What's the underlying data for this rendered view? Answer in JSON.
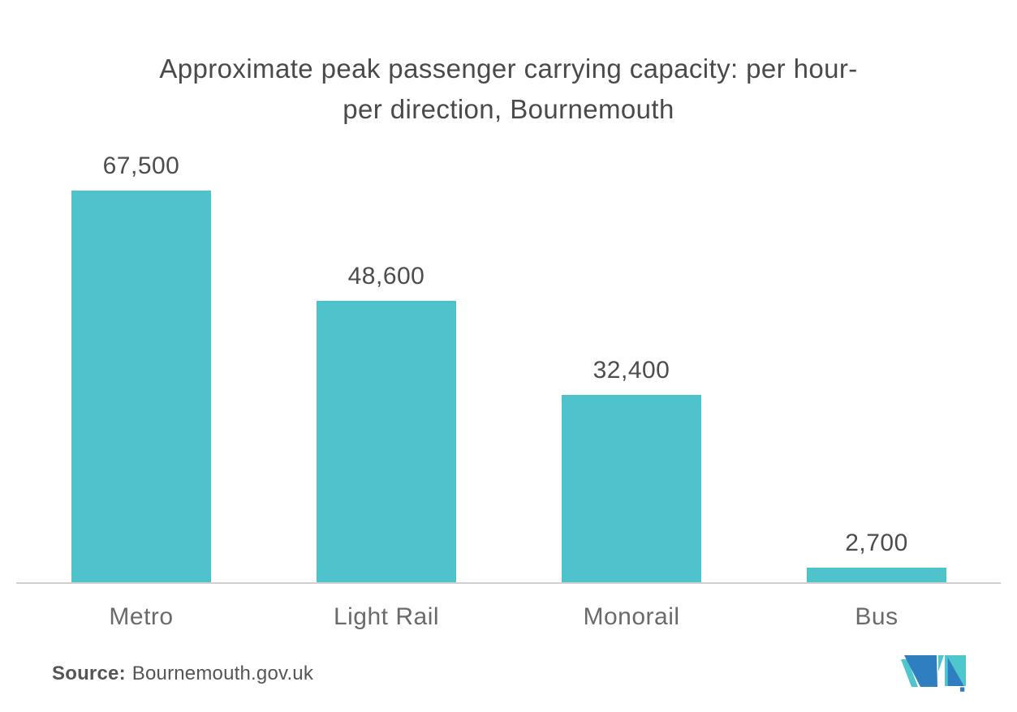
{
  "page": {
    "background": "#FFFFFF"
  },
  "chart_data": {
    "type": "bar",
    "title": "Approximate peak passenger carrying capacity: per hour-per direction, Bournemouth",
    "title_lines": [
      "Approximate peak passenger carrying capacity: per hour-",
      "per direction, Bournemouth"
    ],
    "categories": [
      "Metro",
      "Light Rail",
      "Monorail",
      "Bus"
    ],
    "values": [
      67500,
      48600,
      32400,
      2700
    ],
    "value_labels": [
      "67,500",
      "48,600",
      "32,400",
      "2,700"
    ],
    "xlabel": "",
    "ylabel": "",
    "ylim": [
      0,
      67500
    ],
    "grid": false,
    "legend": false,
    "bar_color": "#4EC3CB",
    "axis_line_color": "#CFCFCF",
    "value_label_color": "#4D4D4D",
    "category_label_color": "#6A6A6A",
    "title_color": "#4A4A4A"
  },
  "source": {
    "label": "Source:",
    "text": "Bournemouth.gov.uk"
  },
  "logo": {
    "name": "mordor-intelligence-logo",
    "blue": "#2F7EC0",
    "teal": "#4EC6CD"
  }
}
